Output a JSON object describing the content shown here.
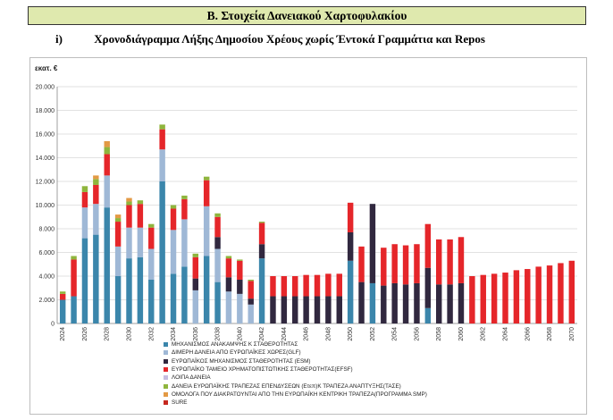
{
  "header": {
    "section_title": "Β. Στοιχεία Δανειακού Χαρτοφυλακίου",
    "sub_number": "i)",
    "sub_title": "Χρονοδιάγραμμα Λήξης Δημοσίου Χρέους χωρίς Έντοκά Γραμμάτια και Repos"
  },
  "chart_data": {
    "type": "bar",
    "stacked": true,
    "ylabel": "εκατ. €",
    "ylim": [
      0,
      20000
    ],
    "yticks": [
      "0",
      "2.000",
      "4.000",
      "6.000",
      "8.000",
      "10.000",
      "12.000",
      "14.000",
      "16.000",
      "18.000",
      "20.000"
    ],
    "grid": true,
    "legend_position": "bottom",
    "x": [
      2024,
      2025,
      2026,
      2027,
      2028,
      2029,
      2030,
      2031,
      2032,
      2033,
      2034,
      2035,
      2036,
      2037,
      2038,
      2039,
      2040,
      2041,
      2042,
      2043,
      2044,
      2045,
      2046,
      2047,
      2048,
      2049,
      2050,
      2051,
      2052,
      2053,
      2054,
      2055,
      2056,
      2057,
      2058,
      2059,
      2060,
      2061,
      2062,
      2063,
      2064,
      2065,
      2066,
      2067,
      2068,
      2069,
      2070
    ],
    "xtick_labels": [
      "2024",
      "2026",
      "2028",
      "2030",
      "2032",
      "2034",
      "2036",
      "2038",
      "2040",
      "2042",
      "2044",
      "2046",
      "2048",
      "2050",
      "2052",
      "2054",
      "2056",
      "2058",
      "2060",
      "2062",
      "2064",
      "2066",
      "2068",
      "2070"
    ],
    "series": [
      {
        "name": "ΜΗΧΑΝΙΣΜΟΣ ΑΝΑΚΑΜΨΗΣ Κ ΣΤΑΘΕΡΟΤΗΤΑΣ",
        "color": "#3b86ab",
        "values": [
          2000,
          2300,
          7200,
          7500,
          9800,
          4000,
          5500,
          5600,
          3700,
          12000,
          4200,
          4800,
          0,
          5700,
          3500,
          0,
          0,
          0,
          5500,
          0,
          0,
          0,
          0,
          0,
          0,
          0,
          5300,
          0,
          3400,
          0,
          0,
          0,
          0,
          1300,
          0,
          0,
          0,
          0,
          0,
          0,
          0,
          0,
          0,
          0,
          0,
          0,
          0
        ]
      },
      {
        "name": "ΔΙΜΕΡΗ ΔΑΝΕΙΑ ΑΠΟ ΕΥΡΩΠΑΪΚΕΣ ΧΩΡΕΣ(GLF)",
        "color": "#9fb8d6",
        "values": [
          0,
          0,
          2600,
          2600,
          2700,
          2500,
          2600,
          2500,
          2600,
          2700,
          3700,
          4000,
          2800,
          4200,
          2800,
          2700,
          2500,
          1600,
          0,
          0,
          0,
          0,
          0,
          0,
          0,
          0,
          0,
          0,
          0,
          0,
          0,
          0,
          0,
          0,
          0,
          0,
          0,
          0,
          0,
          0,
          0,
          0,
          0,
          0,
          0,
          0,
          0
        ]
      },
      {
        "name": "ΕΥΡΩΠΑΪΚΟΣ ΜΗΧΑΝΙΣΜΟΣ ΣΤΑΘΕΡΟΤΗΤΑΣ (ESM)",
        "color": "#31283f",
        "values": [
          0,
          0,
          0,
          0,
          0,
          0,
          0,
          0,
          0,
          0,
          0,
          0,
          1000,
          0,
          1000,
          1200,
          1200,
          500,
          1200,
          2300,
          2300,
          2300,
          2300,
          2300,
          2300,
          2300,
          2400,
          3500,
          6700,
          3200,
          3400,
          3300,
          3400,
          3400,
          3300,
          3300,
          3400,
          0,
          0,
          0,
          0,
          0,
          0,
          0,
          0,
          0,
          0
        ]
      },
      {
        "name": "ΕΥΡΩΠΑΪΚΟ ΤΑΜΕΙΟ ΧΡΗΜΑΤΟΠΙΣΤΩΤΙΚΗΣ ΣΤΑΘΕΡΟΤΗΤΑΣ(EFSF)",
        "color": "#e5262a",
        "values": [
          500,
          3100,
          1300,
          1600,
          1800,
          2100,
          1900,
          2000,
          1800,
          1700,
          1800,
          1700,
          1800,
          2200,
          1700,
          1600,
          1600,
          1500,
          1800,
          1700,
          1700,
          1700,
          1800,
          1800,
          1900,
          1900,
          2500,
          3000,
          0,
          3200,
          3300,
          3300,
          3300,
          3700,
          3800,
          3800,
          3900,
          4000,
          4100,
          4200,
          4300,
          4500,
          4600,
          4800,
          4900,
          5100,
          5300
        ]
      },
      {
        "name": "ΛΟΙΠΑ ΔΑΝΕΙΑ",
        "color": "#c6bde0",
        "values": [
          0,
          0,
          0,
          0,
          0,
          0,
          0,
          0,
          0,
          0,
          0,
          0,
          0,
          0,
          0,
          0,
          0,
          0,
          0,
          0,
          0,
          0,
          0,
          0,
          0,
          0,
          0,
          0,
          0,
          0,
          0,
          0,
          0,
          0,
          0,
          0,
          0,
          0,
          0,
          0,
          0,
          0,
          0,
          0,
          0,
          0,
          0
        ]
      },
      {
        "name": "ΔΑΝΕΙΑ ΕΥΡΩΠΑΪΚΗΣ ΤΡΑΠΕΖΑΣ ΕΠΕΝΔΥΣΕΩΝ (Ετεπ)Κ ΤΡΑΠΕΖΑ ΑΝΑΠΤΥΞΗΣ(ΤΑΣΕ)",
        "color": "#8fb53d",
        "values": [
          200,
          300,
          500,
          500,
          600,
          300,
          300,
          300,
          300,
          400,
          300,
          300,
          300,
          300,
          300,
          200,
          100,
          100,
          100,
          0,
          0,
          0,
          0,
          0,
          0,
          0,
          0,
          0,
          0,
          0,
          0,
          0,
          0,
          0,
          0,
          0,
          0,
          0,
          0,
          0,
          0,
          0,
          0,
          0,
          0,
          0,
          0
        ]
      },
      {
        "name": "ΟΜΟΛΟΓΑ ΠΟΥ ΔΙΑΚΡΑΤΟΥΝΤΑΙ ΑΠΟ ΤΗΝ ΕΥΡΩΠΑΪΚΗ ΚΕΝΤΡΙΚΗ ΤΡΑΠΕΖΑ(ΠΡΟΓΡΑΜΜΑ SMP)",
        "color": "#e39a45",
        "values": [
          0,
          0,
          0,
          300,
          500,
          300,
          300,
          0,
          0,
          0,
          0,
          0,
          0,
          0,
          0,
          0,
          0,
          0,
          0,
          0,
          0,
          0,
          0,
          0,
          0,
          0,
          0,
          0,
          0,
          0,
          0,
          0,
          0,
          0,
          0,
          0,
          0,
          0,
          0,
          0,
          0,
          0,
          0,
          0,
          0,
          0,
          0
        ]
      },
      {
        "name": "SURE",
        "color": "#c6281f",
        "values": [
          0,
          0,
          0,
          0,
          0,
          0,
          0,
          0,
          0,
          0,
          0,
          0,
          0,
          0,
          0,
          0,
          0,
          0,
          0,
          0,
          0,
          0,
          0,
          0,
          0,
          0,
          0,
          0,
          0,
          0,
          0,
          0,
          0,
          0,
          0,
          0,
          0,
          0,
          0,
          0,
          0,
          0,
          0,
          0,
          0,
          0,
          0
        ]
      }
    ]
  }
}
